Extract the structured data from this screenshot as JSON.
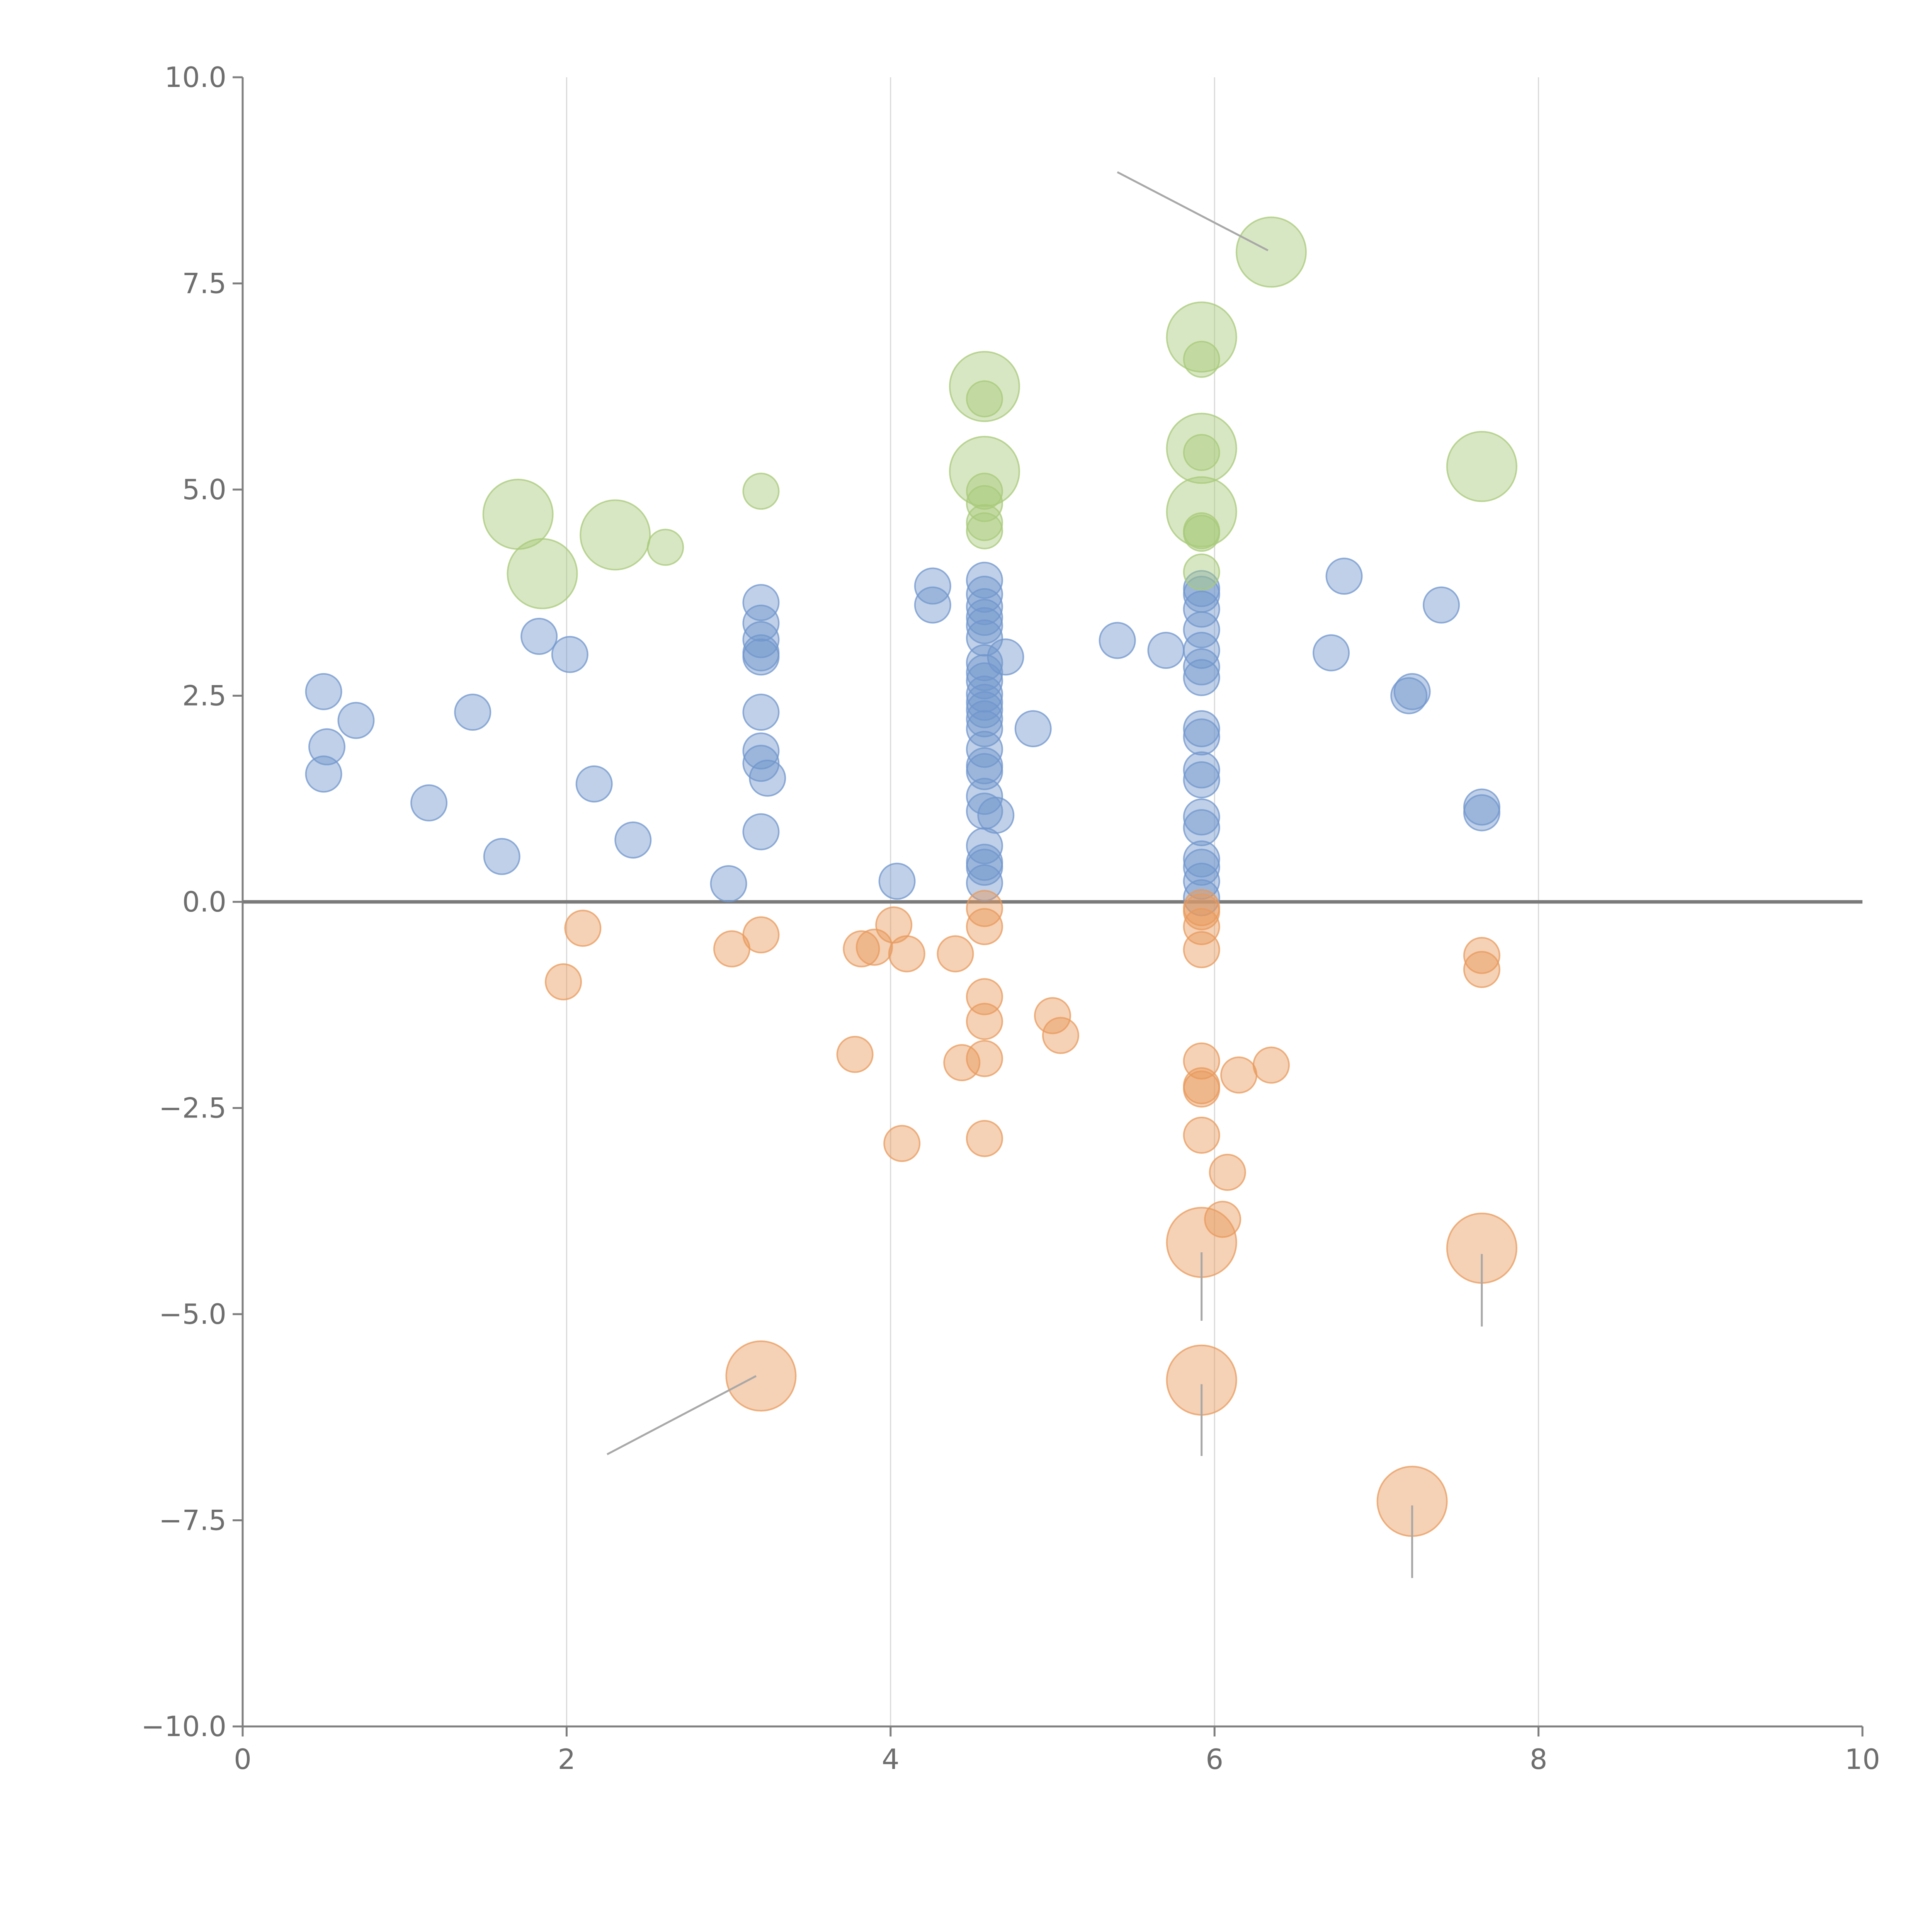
{
  "chart_data": {
    "type": "scatter",
    "title": "",
    "xlabel": "",
    "ylabel": "",
    "xlim": [
      0,
      10
    ],
    "ylim": [
      -10,
      10
    ],
    "grid": "vertical",
    "zero_line": true,
    "x_ticks": [
      0,
      2,
      4,
      6,
      8,
      10
    ],
    "y_ticks": [
      10,
      7.5,
      5,
      2.5,
      0,
      -2.5,
      -5,
      -7.5,
      -10
    ],
    "x_tick_labels": [
      "0",
      "2",
      "4",
      "6",
      "8",
      "10"
    ],
    "y_tick_labels": [
      "10.0",
      "7.5",
      "5.0",
      "2.5",
      "0.0",
      "−2.5",
      "−5.0",
      "−7.5",
      "−10.0"
    ],
    "colors": {
      "positive": "#7096cd",
      "negative": "#e89a5c",
      "highlight": "#a8c97a",
      "grid": "#d9d9d9",
      "axis": "#7f7f7f"
    },
    "series": [
      {
        "name": "positive",
        "color": "#7096cd",
        "points": [
          [
            0.5,
            2.55
          ],
          [
            0.7,
            2.2
          ],
          [
            0.52,
            1.88
          ],
          [
            0.5,
            1.55
          ],
          [
            1.15,
            1.2
          ],
          [
            1.42,
            2.3
          ],
          [
            1.6,
            0.55
          ],
          [
            1.83,
            3.22
          ],
          [
            2.02,
            3.0
          ],
          [
            2.17,
            1.43
          ],
          [
            2.41,
            0.75
          ],
          [
            3.0,
            0.22
          ],
          [
            3.2,
            3.63
          ],
          [
            3.2,
            3.38
          ],
          [
            3.2,
            3.18
          ],
          [
            3.2,
            2.97
          ],
          [
            3.2,
            3.02
          ],
          [
            3.2,
            2.3
          ],
          [
            3.2,
            1.83
          ],
          [
            3.2,
            1.68
          ],
          [
            3.24,
            1.5
          ],
          [
            3.2,
            0.85
          ],
          [
            4.04,
            0.25
          ],
          [
            4.26,
            3.83
          ],
          [
            4.26,
            3.6
          ],
          [
            4.58,
            3.9
          ],
          [
            4.58,
            3.73
          ],
          [
            4.58,
            3.58
          ],
          [
            4.58,
            3.45
          ],
          [
            4.58,
            3.35
          ],
          [
            4.58,
            3.2
          ],
          [
            4.58,
            2.9
          ],
          [
            4.58,
            2.78
          ],
          [
            4.58,
            2.68
          ],
          [
            4.58,
            2.52
          ],
          [
            4.58,
            2.42
          ],
          [
            4.58,
            2.33
          ],
          [
            4.58,
            2.22
          ],
          [
            4.58,
            2.1
          ],
          [
            4.58,
            1.85
          ],
          [
            4.58,
            1.65
          ],
          [
            4.58,
            1.58
          ],
          [
            4.58,
            1.28
          ],
          [
            4.58,
            1.1
          ],
          [
            4.58,
            0.68
          ],
          [
            4.58,
            0.48
          ],
          [
            4.58,
            0.42
          ],
          [
            4.58,
            0.23
          ],
          [
            4.71,
            2.97
          ],
          [
            4.65,
            1.05
          ],
          [
            4.88,
            2.1
          ],
          [
            5.4,
            3.17
          ],
          [
            5.7,
            3.05
          ],
          [
            5.92,
            3.8
          ],
          [
            5.92,
            3.73
          ],
          [
            5.92,
            3.55
          ],
          [
            5.92,
            3.3
          ],
          [
            5.92,
            3.05
          ],
          [
            5.92,
            2.85
          ],
          [
            5.92,
            2.72
          ],
          [
            5.92,
            2.1
          ],
          [
            5.92,
            2.0
          ],
          [
            5.92,
            1.6
          ],
          [
            5.92,
            1.48
          ],
          [
            5.92,
            1.03
          ],
          [
            5.92,
            0.9
          ],
          [
            5.92,
            0.52
          ],
          [
            5.92,
            0.42
          ],
          [
            5.92,
            0.25
          ],
          [
            5.92,
            0.05
          ],
          [
            6.72,
            3.02
          ],
          [
            6.8,
            3.95
          ],
          [
            7.2,
            2.5
          ],
          [
            7.22,
            2.55
          ],
          [
            7.4,
            3.6
          ],
          [
            7.65,
            1.15
          ],
          [
            7.65,
            1.08
          ]
        ]
      },
      {
        "name": "negative",
        "color": "#e89a5c",
        "points": [
          [
            1.98,
            -0.97
          ],
          [
            2.1,
            -0.32
          ],
          [
            3.02,
            -0.57
          ],
          [
            3.2,
            -0.4
          ],
          [
            3.78,
            -1.85
          ],
          [
            3.82,
            -0.57
          ],
          [
            3.9,
            -0.55
          ],
          [
            4.02,
            -0.28
          ],
          [
            4.1,
            -0.63
          ],
          [
            4.07,
            -2.93
          ],
          [
            4.4,
            -0.63
          ],
          [
            4.44,
            -1.95
          ],
          [
            4.58,
            -0.08
          ],
          [
            4.58,
            -0.3
          ],
          [
            4.58,
            -1.15
          ],
          [
            4.58,
            -1.45
          ],
          [
            4.58,
            -1.9
          ],
          [
            4.58,
            -2.87
          ],
          [
            5.0,
            -1.38
          ],
          [
            5.05,
            -1.62
          ],
          [
            5.92,
            -0.07
          ],
          [
            5.92,
            -0.12
          ],
          [
            5.92,
            -0.3
          ],
          [
            5.92,
            -0.58
          ],
          [
            5.92,
            -1.93
          ],
          [
            5.92,
            -2.23
          ],
          [
            5.92,
            -2.27
          ],
          [
            5.92,
            -2.83
          ],
          [
            6.08,
            -3.28
          ],
          [
            6.05,
            -3.85
          ],
          [
            6.15,
            -2.1
          ],
          [
            6.35,
            -1.98
          ],
          [
            7.65,
            -0.65
          ],
          [
            7.65,
            -0.82
          ]
        ]
      },
      {
        "name": "highlight",
        "color": "#a8c97a",
        "points": [
          [
            2.61,
            4.3
          ],
          [
            3.2,
            4.98
          ],
          [
            4.58,
            6.1
          ],
          [
            4.58,
            4.98
          ],
          [
            4.58,
            4.83
          ],
          [
            4.58,
            4.6
          ],
          [
            4.58,
            4.5
          ],
          [
            5.92,
            6.58
          ],
          [
            5.92,
            5.45
          ],
          [
            5.92,
            4.5
          ],
          [
            5.92,
            4.47
          ],
          [
            5.92,
            4.0
          ]
        ]
      },
      {
        "name": "annotated",
        "points": [
          {
            "x": 1.7,
            "y": 4.7,
            "color": "#a8c97a"
          },
          {
            "x": 2.3,
            "y": 4.45,
            "color": "#a8c97a"
          },
          {
            "x": 1.85,
            "y": 3.98,
            "color": "#a8c97a"
          },
          {
            "x": 6.35,
            "y": 7.88,
            "color": "#a8c97a"
          },
          {
            "x": 5.92,
            "y": 6.85,
            "color": "#a8c97a"
          },
          {
            "x": 4.58,
            "y": 6.25,
            "color": "#a8c97a"
          },
          {
            "x": 5.92,
            "y": 5.5,
            "color": "#a8c97a"
          },
          {
            "x": 4.58,
            "y": 5.22,
            "color": "#a8c97a"
          },
          {
            "x": 5.92,
            "y": 4.73,
            "color": "#a8c97a"
          },
          {
            "x": 7.65,
            "y": 5.28,
            "color": "#a8c97a"
          },
          {
            "x": 3.2,
            "y": -5.75,
            "color": "#e89a5c"
          },
          {
            "x": 5.92,
            "y": -4.13,
            "color": "#e89a5c"
          },
          {
            "x": 5.92,
            "y": -5.8,
            "color": "#e89a5c"
          },
          {
            "x": 7.65,
            "y": -4.2,
            "color": "#e89a5c"
          },
          {
            "x": 7.22,
            "y": -7.27,
            "color": "#e89a5c"
          }
        ]
      }
    ],
    "leader_lines": [
      {
        "from": [
          6.33,
          7.9
        ],
        "to": [
          5.4,
          8.85
        ]
      },
      {
        "from": [
          3.17,
          -5.75
        ],
        "to": [
          2.25,
          -6.7
        ]
      },
      {
        "from": [
          5.92,
          -4.25
        ],
        "to": [
          5.92,
          -5.08
        ]
      },
      {
        "from": [
          5.92,
          -5.85
        ],
        "to": [
          5.92,
          -6.72
        ]
      },
      {
        "from": [
          7.65,
          -4.27
        ],
        "to": [
          7.65,
          -5.15
        ]
      },
      {
        "from": [
          7.22,
          -7.32
        ],
        "to": [
          7.22,
          -8.2
        ]
      }
    ]
  }
}
